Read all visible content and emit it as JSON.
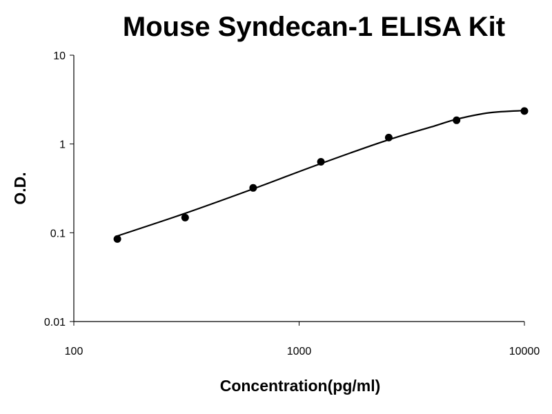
{
  "chart_data": {
    "type": "scatter",
    "title": "Mouse Syndecan-1 ELISA Kit",
    "xlabel": "Concentration(pg/ml)",
    "ylabel": "O.D.",
    "xscale": "log",
    "yscale": "log",
    "xlim": [
      100,
      10000
    ],
    "ylim": [
      0.01,
      10
    ],
    "x_ticks": [
      100,
      1000,
      10000
    ],
    "x_tick_labels": [
      "100",
      "1000",
      "10000"
    ],
    "y_ticks": [
      0.01,
      0.1,
      1,
      10
    ],
    "y_tick_labels": [
      "0.01",
      "0.1",
      "1",
      "10"
    ],
    "grid": false,
    "legend": "none",
    "series": [
      {
        "x": [
          156,
          312,
          625,
          1250,
          2500,
          5000,
          10000
        ],
        "y": [
          0.085,
          0.148,
          0.32,
          0.63,
          1.18,
          1.85,
          2.35
        ]
      }
    ],
    "fit_curve": {
      "x": [
        156,
        300,
        600,
        1200,
        2400,
        4000,
        5000,
        7000,
        10000
      ],
      "y": [
        0.092,
        0.16,
        0.3,
        0.58,
        1.08,
        1.6,
        1.9,
        2.25,
        2.38
      ]
    }
  }
}
